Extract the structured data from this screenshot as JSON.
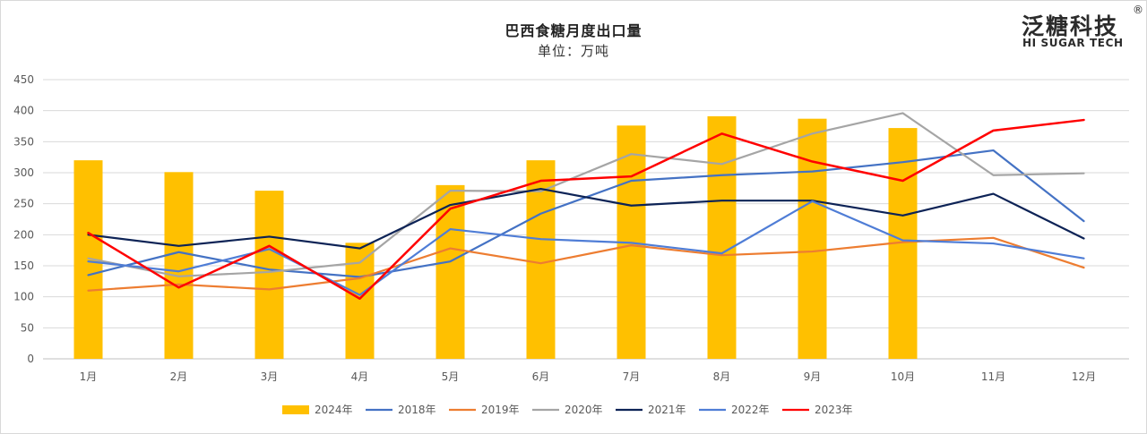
{
  "header": {
    "title": "巴西食糖月度出口量",
    "subtitle": "单位：万吨"
  },
  "logo": {
    "cn": "泛糖科技",
    "en": "HI SUGAR TECH",
    "reg": "®"
  },
  "chart_data": {
    "type": "bar+line",
    "title": "巴西食糖月度出口量",
    "unit": "万吨",
    "categories": [
      "1月",
      "2月",
      "3月",
      "4月",
      "5月",
      "6月",
      "7月",
      "8月",
      "9月",
      "10月",
      "11月",
      "12月"
    ],
    "ylim": [
      0,
      450
    ],
    "yticks": [
      0,
      50,
      100,
      150,
      200,
      250,
      300,
      350,
      400,
      450
    ],
    "grid": true,
    "legend_position": "bottom",
    "bars": {
      "name": "2024年",
      "color": "#FFC000",
      "values": [
        320,
        301,
        271,
        187,
        280,
        320,
        376,
        391,
        387,
        372,
        null,
        null
      ]
    },
    "series": [
      {
        "name": "2018年",
        "color": "#4472C4",
        "values": [
          135,
          172,
          144,
          132,
          157,
          234,
          287,
          296,
          302,
          317,
          336,
          222
        ]
      },
      {
        "name": "2019年",
        "color": "#ED7D31",
        "values": [
          110,
          120,
          112,
          130,
          178,
          154,
          183,
          167,
          173,
          188,
          195,
          147
        ]
      },
      {
        "name": "2020年",
        "color": "#A5A5A5",
        "values": [
          162,
          133,
          140,
          155,
          271,
          270,
          330,
          314,
          363,
          396,
          296,
          299
        ]
      },
      {
        "name": "2021年",
        "color": "#0D2356",
        "values": [
          200,
          182,
          197,
          178,
          248,
          274,
          247,
          255,
          255,
          231,
          266,
          194
        ]
      },
      {
        "name": "2022年",
        "color": "#4F7DD6",
        "values": [
          157,
          141,
          177,
          103,
          209,
          193,
          187,
          170,
          254,
          191,
          186,
          162
        ]
      },
      {
        "name": "2023年",
        "color": "#FF0000",
        "values": [
          203,
          115,
          182,
          97,
          242,
          287,
          294,
          363,
          318,
          287,
          368,
          385
        ]
      }
    ]
  }
}
